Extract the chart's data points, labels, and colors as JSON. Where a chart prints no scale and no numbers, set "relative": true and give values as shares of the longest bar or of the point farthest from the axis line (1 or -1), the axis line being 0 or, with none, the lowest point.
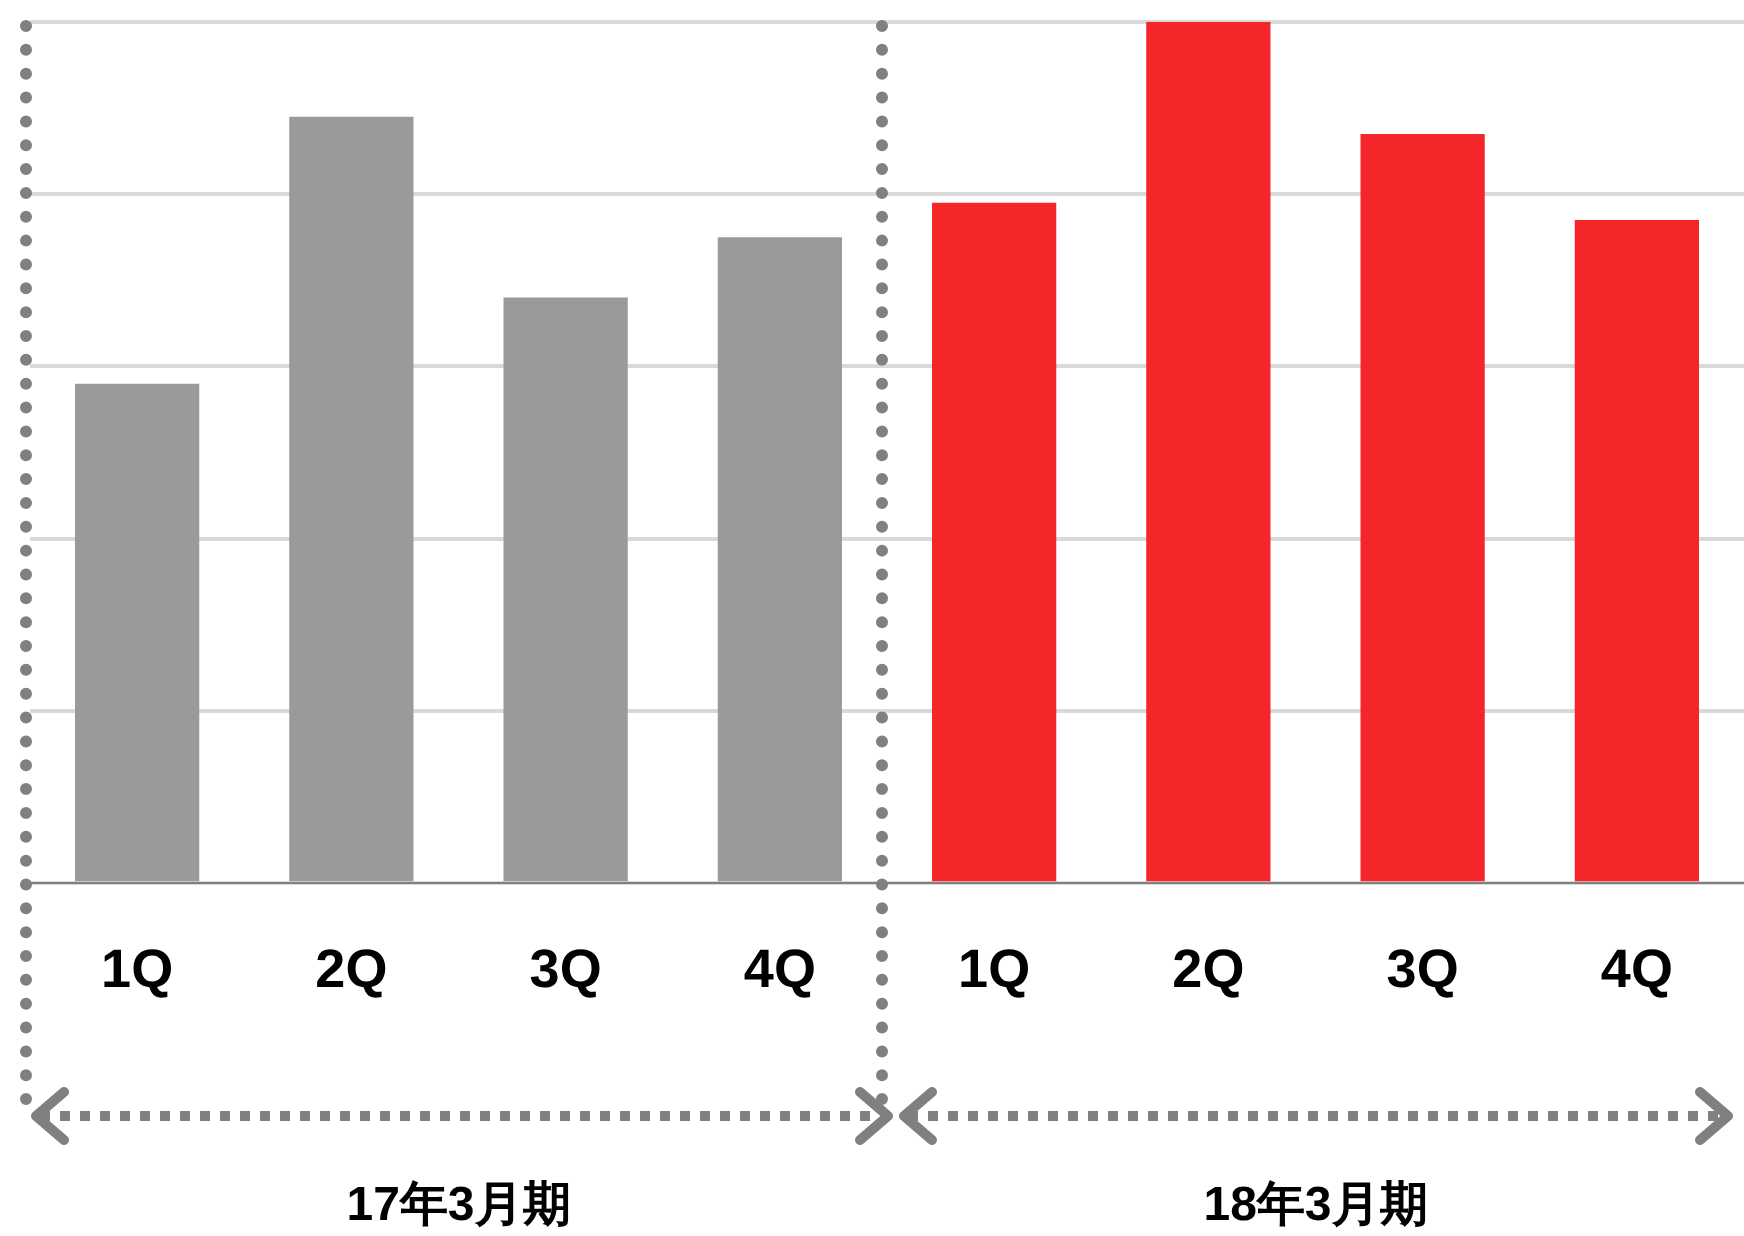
{
  "chart_data": {
    "type": "bar",
    "relative": true,
    "grid": "y",
    "legend": false,
    "categories": [
      "1Q",
      "2Q",
      "3Q",
      "4Q",
      "1Q",
      "2Q",
      "3Q",
      "4Q"
    ],
    "values": [
      0.58,
      0.89,
      0.68,
      0.75,
      0.79,
      1,
      0.87,
      0.77
    ],
    "colors": [
      "#9a9a9a",
      "#9a9a9a",
      "#9a9a9a",
      "#9a9a9a",
      "#f5262a",
      "#f5262a",
      "#f5262a",
      "#f5262a"
    ],
    "annotations": [
      "17年3月期",
      "18年3月期"
    ]
  }
}
